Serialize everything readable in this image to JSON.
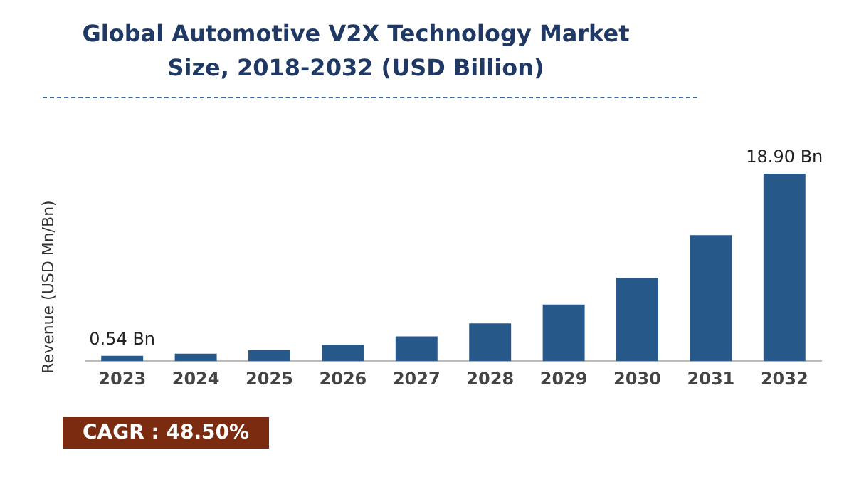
{
  "chart_data": {
    "type": "bar",
    "title": "Global Automotive V2X Technology Market Size, 2018-2032 (USD Billion)",
    "ylabel": "Revenue (USD Mn/Bn)",
    "categories": [
      "2023",
      "2024",
      "2025",
      "2026",
      "2027",
      "2028",
      "2029",
      "2030",
      "2031",
      "2032"
    ],
    "values": [
      0.54,
      0.75,
      1.1,
      1.65,
      2.5,
      3.8,
      5.7,
      8.4,
      12.7,
      18.9
    ],
    "value_labels": [
      "0.54 Bn",
      null,
      null,
      null,
      null,
      null,
      null,
      null,
      null,
      "18.90 Bn"
    ],
    "color": "#27588a",
    "grid": false,
    "legend": false,
    "annotations": [
      "CAGR : 48.50%"
    ]
  }
}
